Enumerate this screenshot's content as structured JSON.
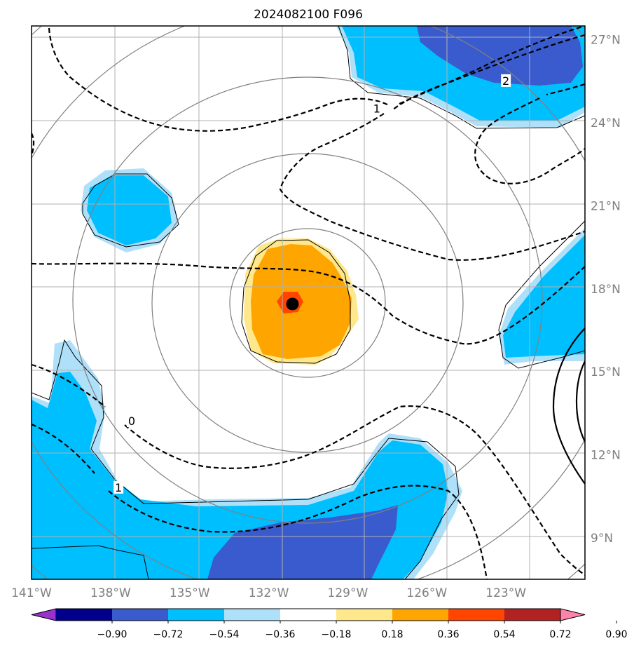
{
  "title": "2024082100 F096",
  "map": {
    "lon_range": [
      -141,
      -120
    ],
    "lat_range": [
      7.5,
      27.5
    ],
    "lon_ticks": [
      {
        "value": -141,
        "label": "141°W"
      },
      {
        "value": -138,
        "label": "138°W"
      },
      {
        "value": -135,
        "label": "135°W"
      },
      {
        "value": -132,
        "label": "132°W"
      },
      {
        "value": -129,
        "label": "129°W"
      },
      {
        "value": -126,
        "label": "126°W"
      },
      {
        "value": -123,
        "label": "123°W"
      }
    ],
    "lat_ticks": [
      {
        "value": 9,
        "label": "9°N"
      },
      {
        "value": 12,
        "label": "12°N"
      },
      {
        "value": 15,
        "label": "15°N"
      },
      {
        "value": 18,
        "label": "18°N"
      },
      {
        "value": 21,
        "label": "21°N"
      },
      {
        "value": 24,
        "label": "24°N"
      },
      {
        "value": 27,
        "label": "27°N"
      }
    ],
    "grid": true,
    "center_marker": {
      "lon": -131.1,
      "lat": 17.45
    },
    "range_rings_lon_offsets_deg": [
      2.8,
      5.6,
      8.4,
      11.2,
      14.0
    ],
    "contour_labels": [
      {
        "text": "0",
        "lon": -137.2,
        "lat": 13.2
      },
      {
        "text": "1",
        "lon": -137.7,
        "lat": 10.8
      },
      {
        "text": "1",
        "lon": -127.9,
        "lat": 24.5
      },
      {
        "text": "2",
        "lon": -123.0,
        "lat": 25.5
      }
    ]
  },
  "colorbar": {
    "ticks": [
      "−0.90",
      "−0.72",
      "−0.54",
      "−0.36",
      "−0.18",
      "0.18",
      "0.36",
      "0.54",
      "0.72",
      "0.90"
    ],
    "colors": [
      "#9932cc",
      "#00008b",
      "#3a5bcd",
      "#00bfff",
      "#aee0fa",
      "#ffffff",
      "#ffe88c",
      "#ffa500",
      "#ff4500",
      "#b22222",
      "#ff82ab"
    ]
  }
}
